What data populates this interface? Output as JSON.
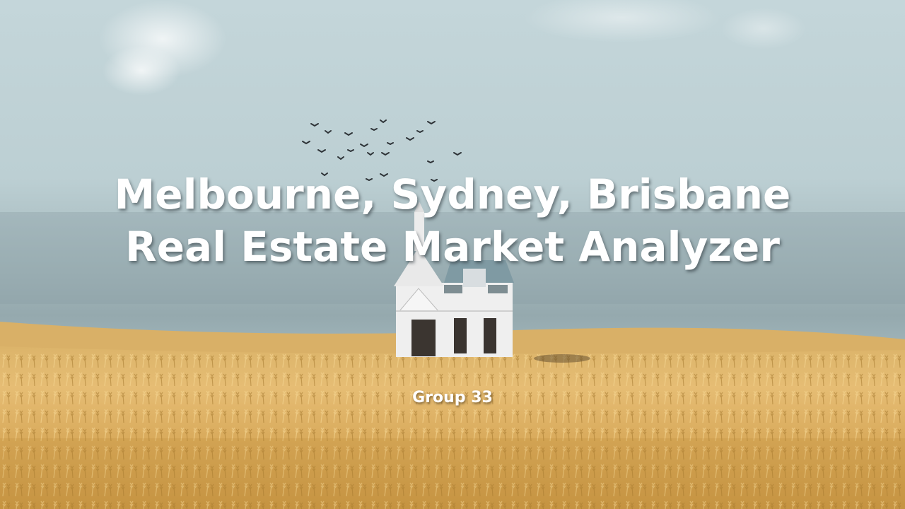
{
  "slide": {
    "title_lines": [
      "Melbourne, Sydney, Brisbane",
      "Real Estate Market Analyzer"
    ],
    "subtitle": "Group 33"
  },
  "background": {
    "description_icons": [
      "sky",
      "clouds",
      "birds",
      "house",
      "wheat-field"
    ],
    "colors": {
      "sky_top": "#cfdfe2",
      "sky_mid": "#aebfc3",
      "horizon_haze": "#8ea2a8",
      "field_light": "#e8bf72",
      "field_dark": "#b98a3a",
      "house": "#f1f1f1"
    }
  }
}
